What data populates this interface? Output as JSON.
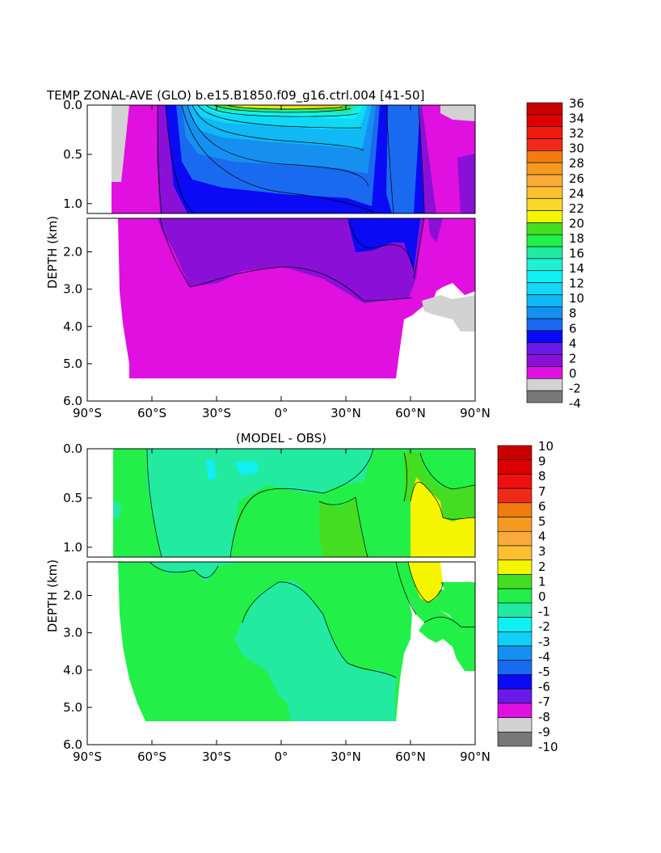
{
  "chart_data": [
    {
      "type": "heatmap",
      "title": "TEMP ZONAL-AVE (GLO) b.e15.B1850.f09_g16.ctrl.004 [41-50]",
      "xlabel": "",
      "ylabel": "DEPTH (km)",
      "x_ticks": [
        "90°S",
        "60°S",
        "30°S",
        "0°",
        "30°N",
        "60°N",
        "90°N"
      ],
      "y_ticks_upper": [
        "0.0",
        "0.5",
        "1.0"
      ],
      "y_ticks_lower": [
        "2.0",
        "3.0",
        "4.0",
        "5.0",
        "6.0"
      ],
      "xlim": [
        -90,
        90
      ],
      "ylim": [
        6.0,
        0.0
      ],
      "y_break_km": 1.1,
      "colorbar": {
        "labels": [
          "36",
          "34",
          "32",
          "30",
          "28",
          "26",
          "24",
          "22",
          "20",
          "18",
          "16",
          "14",
          "12",
          "10",
          "8",
          "6",
          "4",
          "2",
          "0",
          "-2",
          "-4"
        ],
        "colors": [
          "#c80000",
          "#dc0000",
          "#ef1a10",
          "#f02a1a",
          "#f07c10",
          "#f59a20",
          "#faaa3a",
          "#fbc030",
          "#f8d82a",
          "#f5f500",
          "#44dd22",
          "#22f048",
          "#22eaa0",
          "#20f0d2",
          "#10f0f2",
          "#10d8f5",
          "#10b8f5",
          "#1690f0",
          "#1a6af0",
          "#0a0af5",
          "#6a1ae8",
          "#8a10d8",
          "#e010e0",
          "#d2d2d2",
          "#787878"
        ]
      }
    },
    {
      "type": "heatmap",
      "title": "(MODEL - OBS)",
      "xlabel": "",
      "ylabel": "DEPTH (km)",
      "x_ticks": [
        "90°S",
        "60°S",
        "30°S",
        "0°",
        "30°N",
        "60°N",
        "90°N"
      ],
      "y_ticks_upper": [
        "0.0",
        "0.5",
        "1.0"
      ],
      "y_ticks_lower": [
        "2.0",
        "3.0",
        "4.0",
        "5.0",
        "6.0"
      ],
      "xlim": [
        -90,
        90
      ],
      "ylim": [
        6.0,
        0.0
      ],
      "y_break_km": 1.1,
      "colorbar": {
        "labels": [
          "10",
          "9",
          "8",
          "7",
          "6",
          "5",
          "4",
          "3",
          "2",
          "1",
          "0",
          "-1",
          "-2",
          "-3",
          "-4",
          "-5",
          "-6",
          "-7",
          "-8",
          "-9",
          "-10"
        ],
        "colors": [
          "#c80000",
          "#dc0000",
          "#ee1010",
          "#f02a1a",
          "#f07c10",
          "#f59a20",
          "#faaa3a",
          "#fbc030",
          "#f5f500",
          "#44dd22",
          "#22f048",
          "#22eaa0",
          "#10f0f2",
          "#10d0f5",
          "#1690f0",
          "#1a6af0",
          "#0a0af5",
          "#6a1ae8",
          "#e010e0",
          "#d2d2d2",
          "#787878"
        ]
      }
    }
  ]
}
